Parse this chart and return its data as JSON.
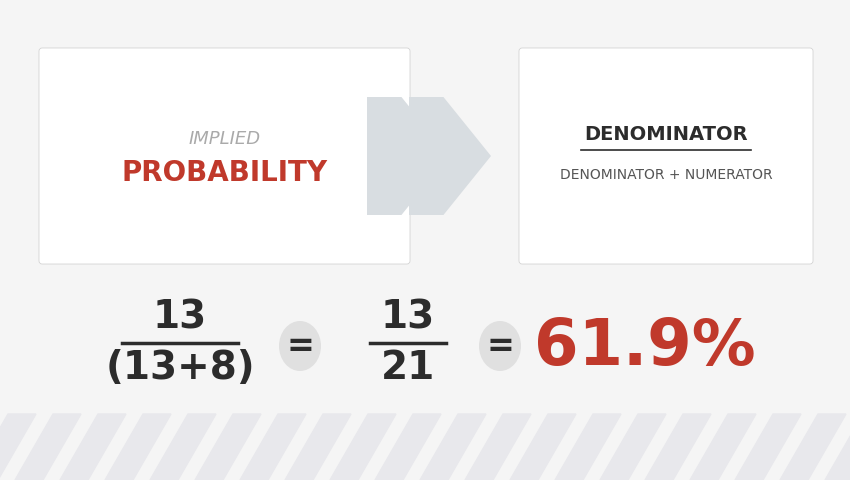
{
  "bg_color": "#f5f5f5",
  "box1_color": "#ffffff",
  "box2_color": "#ffffff",
  "arrow_color": "#d8dde1",
  "implied_label": "IMPLIED",
  "probability_label": "PROBABILITY",
  "implied_color": "#aaaaaa",
  "probability_color": "#c0392b",
  "denominator_top": "DENOMINATOR",
  "denominator_bottom": "DENOMINATOR + NUMERATOR",
  "denom_top_color": "#2c2c2c",
  "denom_bottom_color": "#555555",
  "eq1_num": "13",
  "eq1_den": "(13+8)",
  "eq2_num": "13",
  "eq2_den": "21",
  "eq_result": "61.9%",
  "eq_color": "#2c2c2c",
  "eq_result_color": "#c0392b",
  "stripe_color": "#e8e8ec",
  "bubble_color": "#e0e0e0",
  "border_color": "#cccccc"
}
